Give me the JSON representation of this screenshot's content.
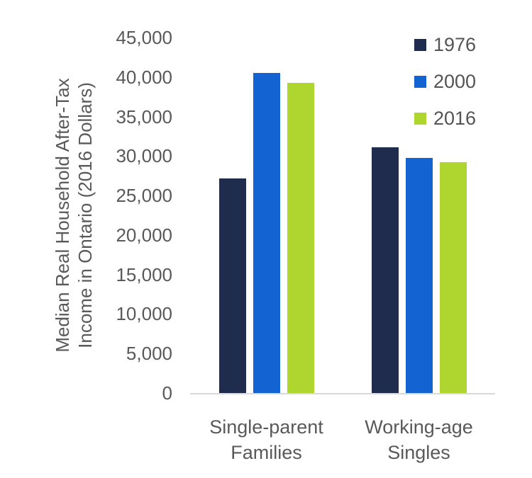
{
  "chart_data": {
    "type": "bar",
    "title": "",
    "categories": [
      {
        "label_lines": [
          "Single-parent",
          "Families"
        ]
      },
      {
        "label_lines": [
          "Working-age",
          "Singles"
        ]
      }
    ],
    "series": [
      {
        "name": "1976",
        "color": "#1F2C4E",
        "values": [
          27200,
          31100
        ]
      },
      {
        "name": "2000",
        "color": "#1363D2",
        "values": [
          40500,
          29800
        ]
      },
      {
        "name": "2016",
        "color": "#AFD62E",
        "values": [
          39300,
          29200
        ]
      }
    ],
    "ylabel_lines": [
      "Median Real Household After-Tax",
      "Income in Ontario (2016 Dollars)"
    ],
    "ylim": [
      0,
      45000
    ],
    "ytick_step": 5000,
    "ytick_labels": [
      "0",
      "5,000",
      "10,000",
      "15,000",
      "20,000",
      "25,000",
      "30,000",
      "35,000",
      "40,000",
      "45,000"
    ],
    "grid": false,
    "legend_position": "top-right",
    "colors": {
      "axis_line": "#D9D9D9",
      "tick_text": "#595959",
      "category_text": "#595959",
      "legend_text": "#545454",
      "background": "#ffffff"
    }
  }
}
